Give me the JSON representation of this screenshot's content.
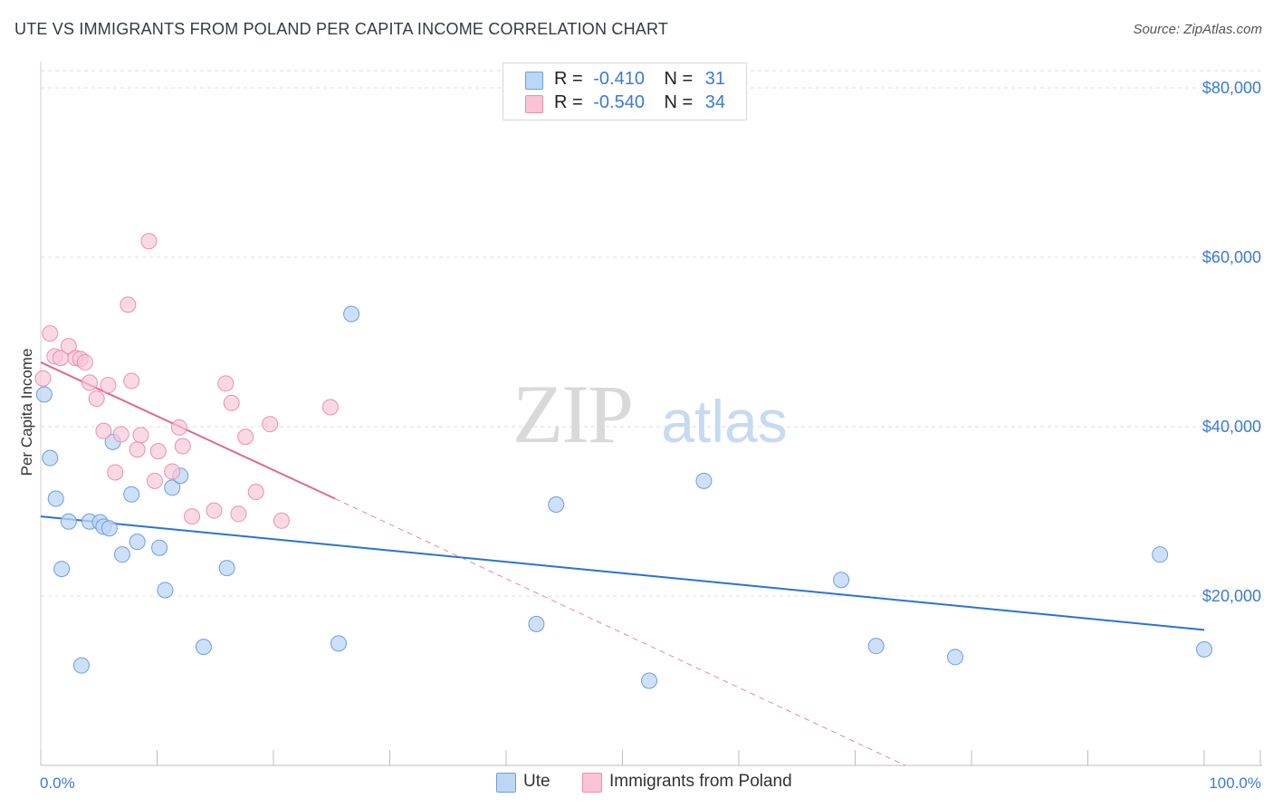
{
  "header": {
    "title": "UTE VS IMMIGRANTS FROM POLAND PER CAPITA INCOME CORRELATION CHART",
    "source": "Source: ZipAtlas.com"
  },
  "legend": {
    "rows": [
      {
        "r_label": "R =",
        "r_value": "-0.410",
        "n_label": "N =",
        "n_value": "31"
      },
      {
        "r_label": "R =",
        "r_value": "-0.540",
        "n_label": "N =",
        "n_value": "34"
      }
    ]
  },
  "bottom_legend": {
    "ute": "Ute",
    "poland": "Immigrants from Poland"
  },
  "watermark": {
    "zip": "ZIP",
    "atlas": "atlas"
  },
  "colors": {
    "ute_fill": "#bdd6f5",
    "ute_stroke": "#6a9fe0",
    "ute_line": "#2a72d6",
    "poland_fill": "#f9c4d5",
    "poland_stroke": "#ec8fab",
    "poland_line": "#e0688f",
    "tick_text": "#3a7bd5",
    "grid": "#dcdcdc"
  },
  "chart_data": {
    "type": "scatter",
    "title": "UTE VS IMMIGRANTS FROM POLAND PER CAPITA INCOME CORRELATION CHART",
    "xlabel": "",
    "ylabel": "Per Capita Income",
    "xlim": [
      0,
      100
    ],
    "ylim": [
      0,
      80000
    ],
    "x_tick_labels": [
      "0.0%",
      "100.0%"
    ],
    "y_ticks": [
      {
        "value": 20000,
        "label": "$20,000"
      },
      {
        "value": 40000,
        "label": "$40,000"
      },
      {
        "value": 60000,
        "label": "$60,000"
      },
      {
        "value": 80000,
        "label": "$80,000"
      }
    ],
    "series": [
      {
        "name": "Ute",
        "r": -0.41,
        "n": 31,
        "points": [
          [
            0.3,
            43800
          ],
          [
            0.8,
            36300
          ],
          [
            1.3,
            31500
          ],
          [
            1.8,
            23200
          ],
          [
            2.4,
            28800
          ],
          [
            3.5,
            11800
          ],
          [
            4.2,
            28800
          ],
          [
            5.1,
            28700
          ],
          [
            5.4,
            28200
          ],
          [
            5.9,
            28000
          ],
          [
            6.2,
            38200
          ],
          [
            7.0,
            24900
          ],
          [
            7.8,
            32000
          ],
          [
            8.3,
            26400
          ],
          [
            10.2,
            25700
          ],
          [
            10.7,
            20700
          ],
          [
            11.3,
            32800
          ],
          [
            12.0,
            34200
          ],
          [
            14.0,
            14000
          ],
          [
            16.0,
            23300
          ],
          [
            25.6,
            14400
          ],
          [
            26.7,
            53300
          ],
          [
            42.6,
            16700
          ],
          [
            44.3,
            30800
          ],
          [
            52.3,
            10000
          ],
          [
            57.0,
            33600
          ],
          [
            68.8,
            21900
          ],
          [
            71.8,
            14100
          ],
          [
            78.6,
            12800
          ],
          [
            96.2,
            24900
          ],
          [
            100.0,
            13700
          ]
        ],
        "trend": {
          "x0": 0,
          "y0": 29400,
          "x1": 100,
          "y1": 16000
        }
      },
      {
        "name": "Immigrants from Poland",
        "r": -0.54,
        "n": 34,
        "points": [
          [
            0.2,
            45700
          ],
          [
            0.8,
            51000
          ],
          [
            1.2,
            48300
          ],
          [
            1.7,
            48100
          ],
          [
            2.4,
            49500
          ],
          [
            3.0,
            48100
          ],
          [
            3.4,
            48000
          ],
          [
            3.8,
            47600
          ],
          [
            4.2,
            45200
          ],
          [
            4.8,
            43300
          ],
          [
            5.4,
            39500
          ],
          [
            5.8,
            44900
          ],
          [
            6.4,
            34600
          ],
          [
            6.9,
            39100
          ],
          [
            7.5,
            54400
          ],
          [
            7.8,
            45400
          ],
          [
            8.3,
            37300
          ],
          [
            8.6,
            39000
          ],
          [
            9.3,
            61900
          ],
          [
            9.8,
            33600
          ],
          [
            10.1,
            37100
          ],
          [
            11.3,
            34700
          ],
          [
            11.9,
            39900
          ],
          [
            12.2,
            37700
          ],
          [
            13.0,
            29400
          ],
          [
            14.9,
            30100
          ],
          [
            15.9,
            45100
          ],
          [
            16.4,
            42800
          ],
          [
            17.0,
            29700
          ],
          [
            17.6,
            38800
          ],
          [
            18.5,
            32300
          ],
          [
            19.7,
            40300
          ],
          [
            20.7,
            28900
          ],
          [
            24.9,
            42300
          ]
        ],
        "trend": {
          "x0": 0,
          "y0": 47600,
          "x1": 25.3,
          "y1": 31500
        },
        "trend_extension": {
          "x0": 25.3,
          "y0": 31500,
          "x1": 74.3,
          "y1": 0
        }
      }
    ]
  }
}
